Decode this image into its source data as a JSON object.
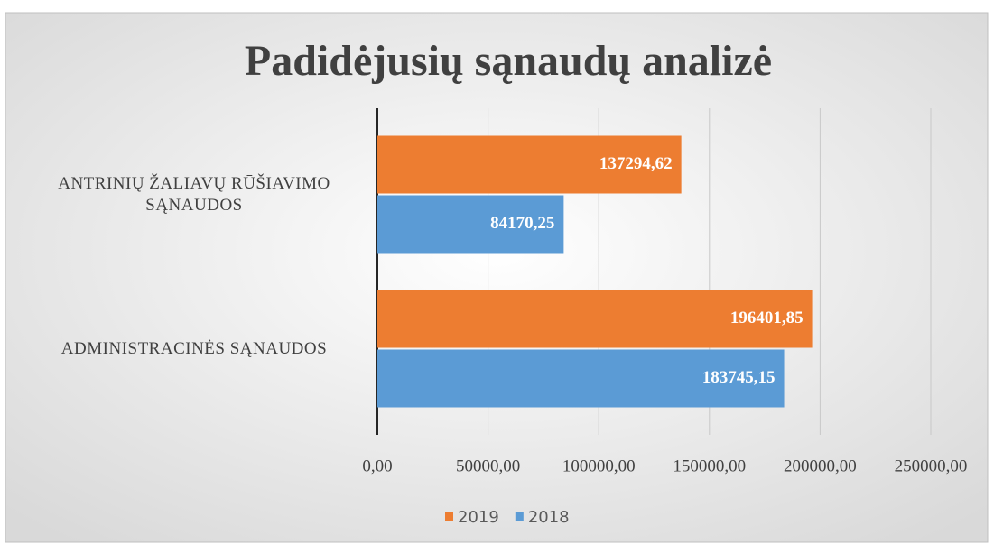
{
  "chart_data": {
    "type": "hbar",
    "title": "Padidėjusių sąnaudų analizė",
    "categories": [
      "ANTRINIŲ ŽALIAVŲ RŪŠIAVIMO SĄNAUDOS",
      "ADMINISTRACINĖS SĄNAUDOS"
    ],
    "series": [
      {
        "name": "2019",
        "color": "#ed7d31",
        "values": [
          137294.62,
          196401.85
        ],
        "value_labels": [
          "137294,62",
          "196401,85"
        ]
      },
      {
        "name": "2018",
        "color": "#5b9bd5",
        "values": [
          84170.25,
          183745.15
        ],
        "value_labels": [
          "84170,25",
          "183745,15"
        ]
      }
    ],
    "xlim": [
      0,
      250000
    ],
    "xticks": [
      {
        "value": 0,
        "label": "0,00"
      },
      {
        "value": 50000,
        "label": "50000,00"
      },
      {
        "value": 100000,
        "label": "100000,00"
      },
      {
        "value": 150000,
        "label": "150000,00"
      },
      {
        "value": 200000,
        "label": "200000,00"
      },
      {
        "value": 250000,
        "label": "250000,00"
      }
    ],
    "grid": true,
    "legend": "bottom"
  }
}
